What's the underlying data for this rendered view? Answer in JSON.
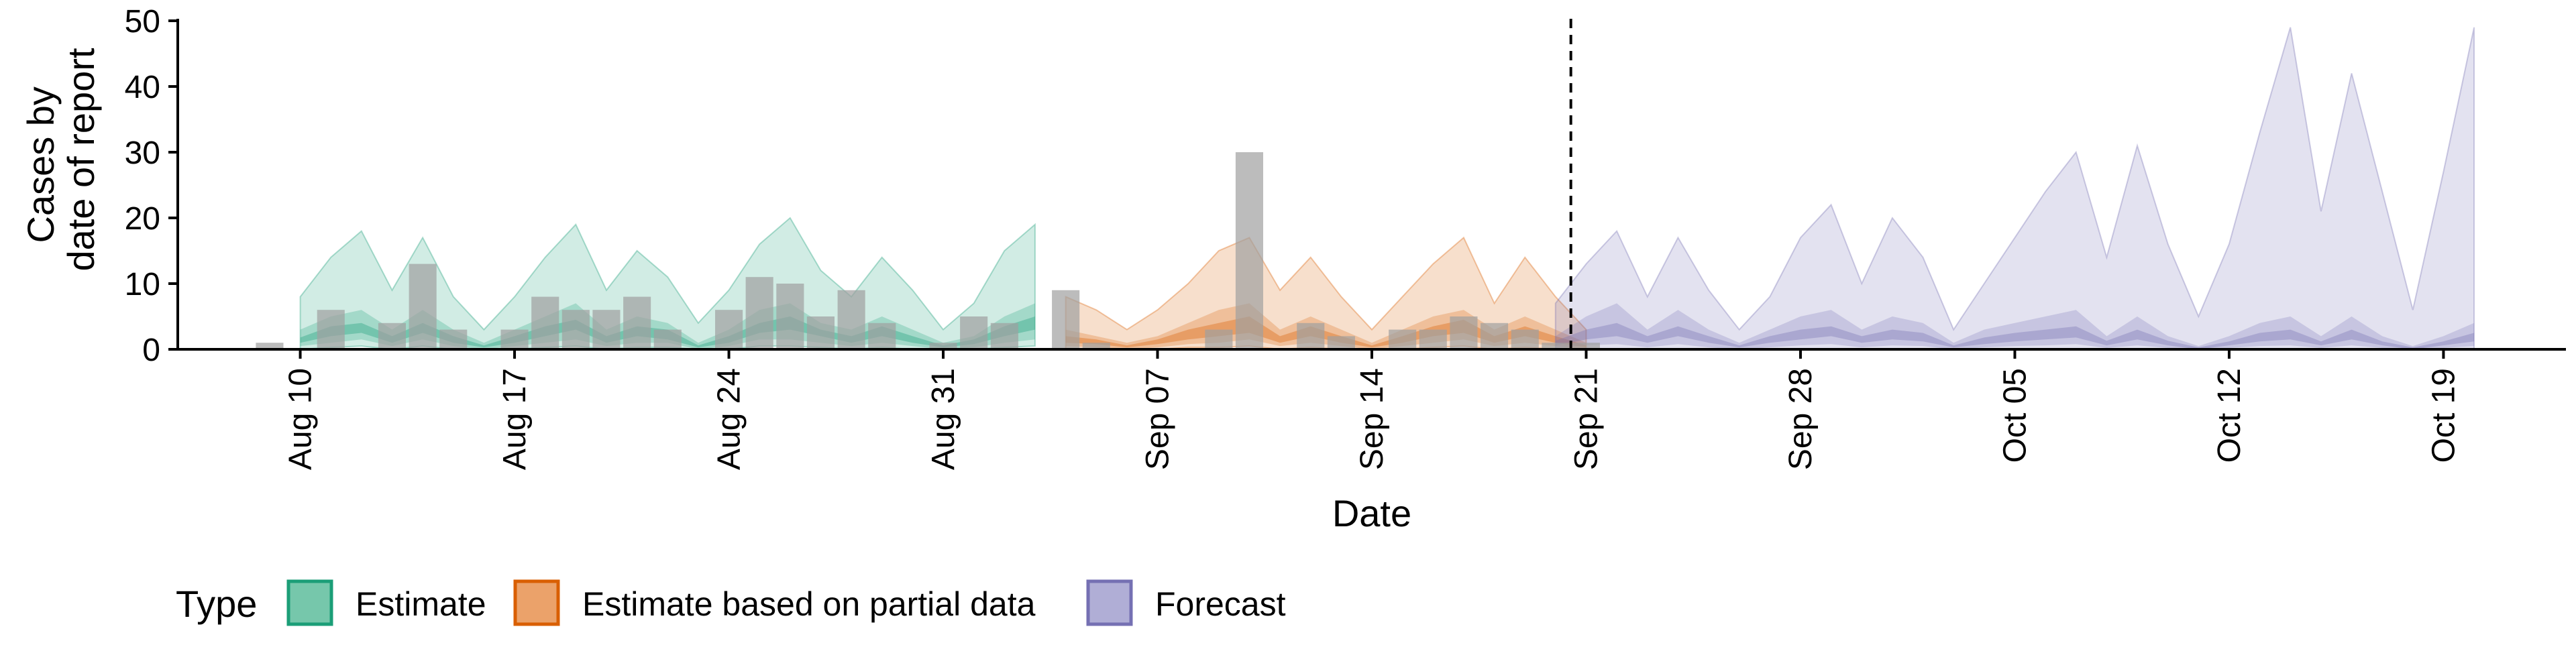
{
  "chart_data": {
    "type": "area",
    "xlabel": "Date",
    "ylabel_lines": [
      "Cases by",
      "date of report"
    ],
    "ylim": [
      0,
      50
    ],
    "y_ticks": [
      0,
      10,
      20,
      30,
      40,
      50
    ],
    "x_tick_labels": [
      "Aug 10",
      "Aug 17",
      "Aug 24",
      "Aug 31",
      "Sep 07",
      "Sep 14",
      "Sep 21",
      "Sep 28",
      "Oct 05",
      "Oct 12",
      "Oct 19"
    ],
    "x_tick_dates": [
      "2020-08-10",
      "2020-08-17",
      "2020-08-24",
      "2020-08-31",
      "2020-09-07",
      "2020-09-14",
      "2020-09-21",
      "2020-09-28",
      "2020-10-05",
      "2020-10-12",
      "2020-10-19"
    ],
    "x_range": [
      "2020-08-06",
      "2020-10-23"
    ],
    "forecast_start": "2020-09-20",
    "legend": {
      "title": "Type",
      "position": "bottom",
      "entries": [
        {
          "label": "Estimate",
          "fill": "#76c7ab",
          "stroke": "#1b9e77"
        },
        {
          "label": "Estimate based on partial data",
          "fill": "#eba26a",
          "stroke": "#d95f02"
        },
        {
          "label": "Forecast",
          "fill": "#b0aed6",
          "stroke": "#7570b3"
        }
      ]
    },
    "reported_cases": {
      "color": "#a0a0a0",
      "start": "2020-08-09",
      "values": [
        1,
        0,
        6,
        0,
        4,
        13,
        3,
        0,
        3,
        8,
        6,
        6,
        8,
        3,
        0,
        6,
        11,
        10,
        5,
        9,
        4,
        0,
        1,
        5,
        4,
        0,
        9,
        1,
        0,
        0,
        0,
        3,
        30,
        0,
        4,
        2,
        0,
        3,
        3,
        5,
        4,
        3,
        1,
        1
      ]
    },
    "series": [
      {
        "name": "Estimate",
        "fill": "#1b9e77",
        "start": "2020-08-10",
        "upper90": [
          8,
          14,
          18,
          9,
          17,
          8,
          3,
          8,
          14,
          19,
          9,
          15,
          11,
          4,
          9,
          16,
          20,
          12,
          8,
          14,
          9,
          3,
          7,
          15,
          19
        ],
        "upper50": [
          3,
          5,
          6,
          3,
          6,
          3,
          1,
          3,
          5,
          7,
          3,
          5,
          4,
          1,
          3,
          6,
          7,
          4,
          3,
          5,
          3,
          1,
          2,
          5,
          7
        ],
        "upper20": [
          1.8,
          3.5,
          4,
          2,
          4,
          2,
          0.6,
          2,
          3.5,
          4.5,
          2,
          3.5,
          3,
          0.6,
          2,
          4,
          5,
          3,
          2,
          3.5,
          2,
          0.6,
          1.5,
          3.5,
          5
        ],
        "lower20": [
          1,
          2,
          2.5,
          1,
          2.5,
          1,
          0.3,
          1,
          2,
          3,
          1,
          2,
          1.5,
          0.3,
          1,
          2.5,
          3,
          2,
          1,
          2,
          1,
          0.3,
          0.8,
          2,
          3
        ],
        "lower50": [
          0.5,
          1,
          1.5,
          0.5,
          1.5,
          0.5,
          0,
          0.5,
          1,
          1.5,
          0.5,
          1,
          1,
          0,
          0.5,
          1.5,
          1.5,
          1,
          0.5,
          1,
          0.5,
          0,
          0.3,
          1,
          1.5
        ],
        "lower90": [
          0,
          0.3,
          0.5,
          0,
          0.5,
          0,
          0,
          0,
          0.3,
          0.5,
          0,
          0.3,
          0.3,
          0,
          0,
          0.5,
          0.5,
          0.3,
          0,
          0.3,
          0,
          0,
          0,
          0.3,
          0.5
        ]
      },
      {
        "name": "Estimate based on partial data",
        "fill": "#d95f02",
        "start": "2020-09-04",
        "upper90": [
          8,
          6,
          3,
          6,
          10,
          15,
          17,
          9,
          14,
          8,
          3,
          8,
          13,
          17,
          7,
          14,
          8,
          3
        ],
        "upper50": [
          3,
          2,
          1,
          2,
          4,
          6,
          7,
          3,
          5,
          3,
          1,
          3,
          5,
          6,
          3,
          5,
          3,
          1
        ],
        "upper20": [
          2,
          1.5,
          0.6,
          1.5,
          3,
          4,
          5,
          2,
          3.5,
          2,
          0.6,
          2,
          3.5,
          4.5,
          2,
          3.5,
          2,
          0.6
        ],
        "lower20": [
          1,
          0.8,
          0.3,
          0.8,
          1.5,
          2,
          2.5,
          1,
          2,
          1,
          0.3,
          1,
          2,
          2.5,
          1,
          2,
          1,
          0.3
        ],
        "lower50": [
          0.5,
          0.3,
          0,
          0.3,
          0.8,
          1,
          1.5,
          0.5,
          1,
          0.5,
          0,
          0.5,
          1,
          1.5,
          0.5,
          1,
          0.5,
          0
        ],
        "lower90": [
          0,
          0,
          0,
          0,
          0.3,
          0.3,
          0.5,
          0,
          0.3,
          0,
          0,
          0,
          0.3,
          0.5,
          0,
          0.3,
          0,
          0
        ]
      },
      {
        "name": "Forecast",
        "fill": "#7570b3",
        "start": "2020-09-20",
        "upper90": [
          7,
          13,
          18,
          8,
          17,
          9,
          3,
          8,
          17,
          22,
          10,
          20,
          14,
          3,
          10,
          17,
          24,
          30,
          14,
          31,
          16,
          5,
          16,
          33,
          49,
          21,
          42,
          24,
          6,
          27,
          49
        ],
        "upper50": [
          2,
          5,
          7,
          3,
          6,
          3,
          1,
          3,
          5,
          6,
          3,
          5,
          4,
          1,
          3,
          4,
          5,
          6,
          2,
          5,
          2,
          0.5,
          2,
          4,
          5,
          2,
          5,
          2,
          0.5,
          2,
          4
        ],
        "upper20": [
          1.3,
          3,
          4,
          2,
          3.5,
          2,
          0.6,
          2,
          3,
          3.5,
          2,
          3,
          2.5,
          0.6,
          1.8,
          2.5,
          3,
          3.5,
          1.3,
          3,
          1.3,
          0.3,
          1.2,
          2.5,
          3,
          1.2,
          3,
          1.2,
          0.3,
          1.2,
          2.5
        ],
        "lower20": [
          0.6,
          1.5,
          2,
          1,
          2,
          1,
          0.3,
          1,
          1.5,
          2,
          1,
          1.5,
          1.2,
          0.3,
          0.8,
          1.2,
          1.5,
          1.8,
          0.6,
          1.5,
          0.6,
          0,
          0.6,
          1.2,
          1.5,
          0.6,
          1.5,
          0.6,
          0,
          0.6,
          1.2
        ],
        "lower50": [
          0.2,
          0.6,
          0.8,
          0.3,
          0.8,
          0.3,
          0,
          0.3,
          0.6,
          0.8,
          0.3,
          0.6,
          0.5,
          0,
          0.3,
          0.5,
          0.6,
          0.8,
          0.2,
          0.6,
          0.2,
          0,
          0.2,
          0.5,
          0.6,
          0.2,
          0.6,
          0.2,
          0,
          0.2,
          0.5
        ],
        "lower90": [
          0,
          0,
          0,
          0,
          0,
          0,
          0,
          0,
          0,
          0,
          0,
          0,
          0,
          0,
          0,
          0,
          0,
          0,
          0,
          0,
          0,
          0,
          0,
          0,
          0,
          0,
          0,
          0,
          0,
          0,
          0
        ]
      }
    ]
  }
}
